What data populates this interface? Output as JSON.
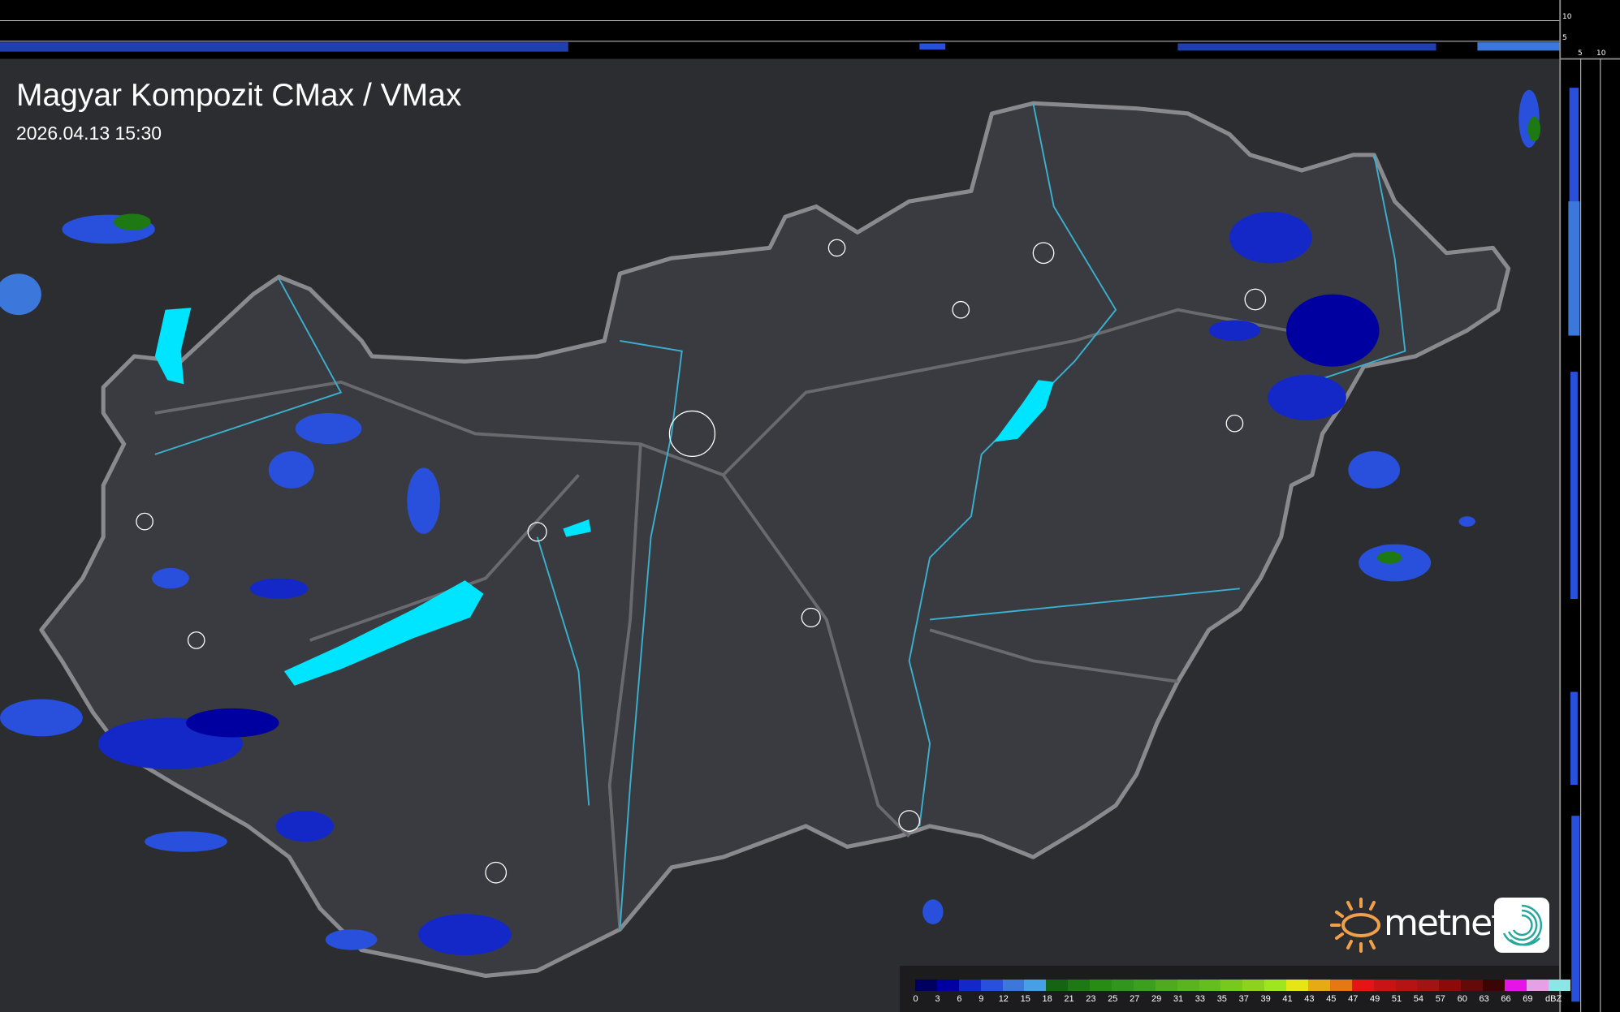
{
  "map": {
    "title": "Magyar Kompozit CMax / VMax",
    "timestamp": "2026.04.13 15:30"
  },
  "top_profile_axis": {
    "labels": [
      "10",
      "5"
    ]
  },
  "side_profile_axis": {
    "labels": [
      "5",
      "10"
    ]
  },
  "legend": {
    "unit": "dBZ",
    "labels": [
      "0",
      "3",
      "6",
      "9",
      "12",
      "15",
      "18",
      "21",
      "23",
      "25",
      "27",
      "29",
      "31",
      "33",
      "35",
      "37",
      "39",
      "41",
      "43",
      "45",
      "47",
      "49",
      "51",
      "54",
      "57",
      "60",
      "63",
      "66",
      "69"
    ],
    "colors": [
      "#000060",
      "#0000a0",
      "#1428c8",
      "#2850dc",
      "#3c78dc",
      "#46a0e6",
      "#146414",
      "#1e7814",
      "#288c14",
      "#32961e",
      "#3ca01e",
      "#50aa1e",
      "#5ab41e",
      "#64be1e",
      "#78c81e",
      "#8cd21e",
      "#a0e61e",
      "#e6e614",
      "#e6aa14",
      "#e67814",
      "#e61414",
      "#c81414",
      "#b41414",
      "#a01414",
      "#8c0a0a",
      "#640a0a",
      "#3c0505",
      "#e614e6",
      "#e6a0e6",
      "#8ce6e6"
    ]
  },
  "branding": {
    "logo_text": "metnet"
  },
  "colors": {
    "background": "#2c2d31",
    "country_fill": "#3a3b40",
    "border": "#8a8a8e",
    "lakes": "#00e5ff",
    "rivers": "#3ab0d0",
    "rain_light": "#2850dc",
    "rain_heavy": "#0000a0"
  }
}
